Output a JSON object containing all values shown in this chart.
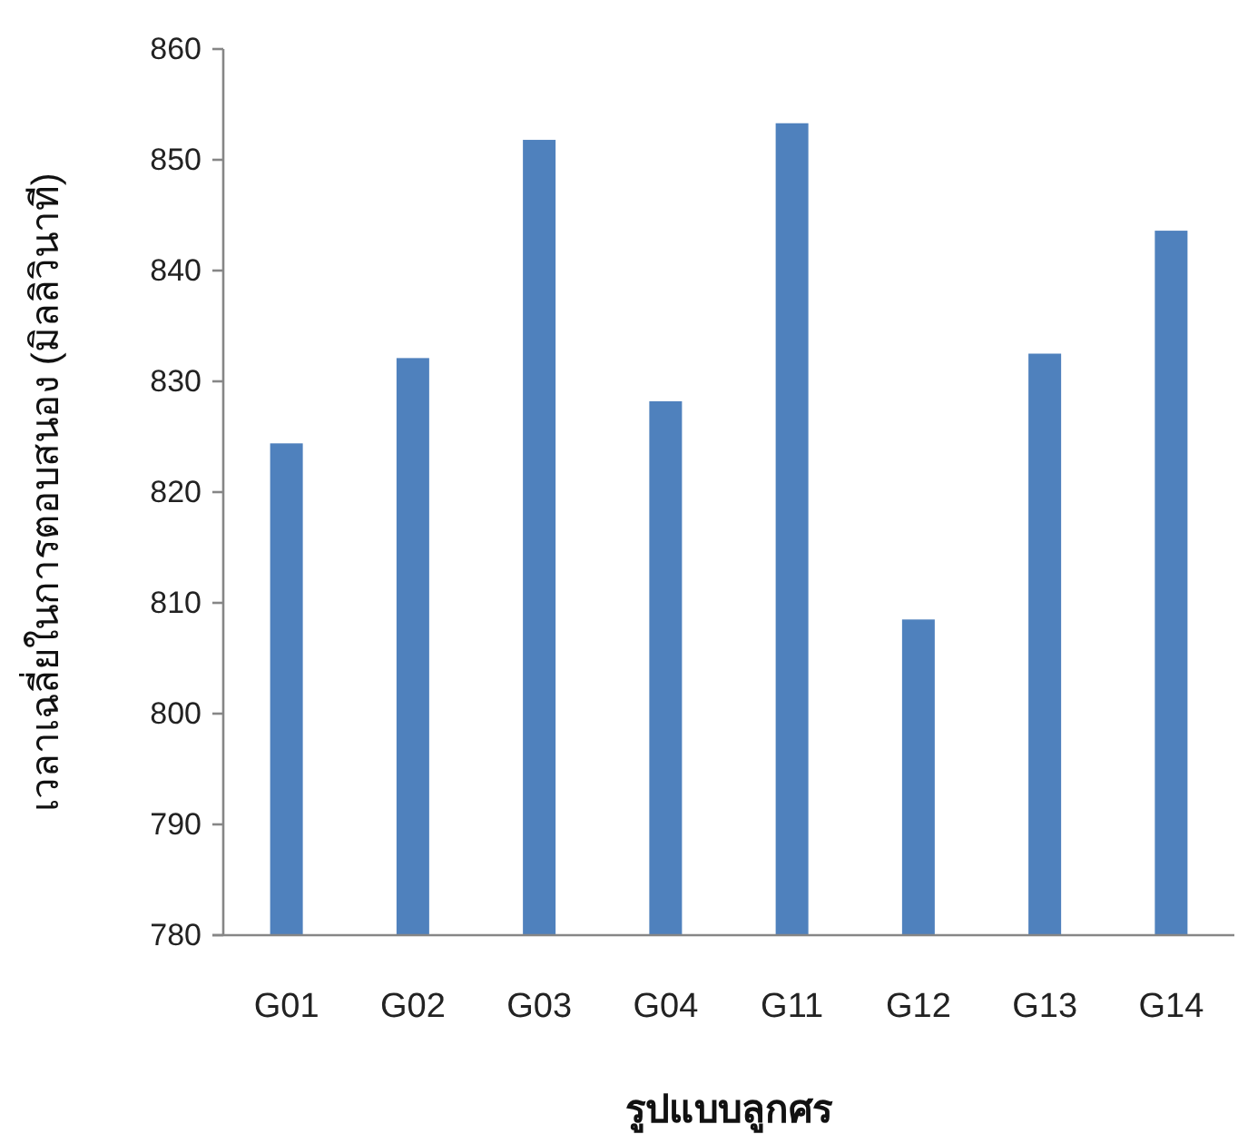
{
  "chart_data": {
    "type": "bar",
    "xlabel": "รูปแบบลูกศร",
    "ylabel": "เวลาเฉลี่ยในการตอบสนอง (มิลลิวินาที)",
    "categories": [
      "G01",
      "G02",
      "G03",
      "G04",
      "G11",
      "G12",
      "G13",
      "G14"
    ],
    "values": [
      824.4,
      832.1,
      851.8,
      828.2,
      853.3,
      808.5,
      832.5,
      843.6
    ],
    "color": "#4f81bd",
    "ylim": [
      780,
      860
    ],
    "yticks": [
      780,
      790,
      800,
      810,
      820,
      830,
      840,
      850,
      860
    ],
    "grid": false
  }
}
